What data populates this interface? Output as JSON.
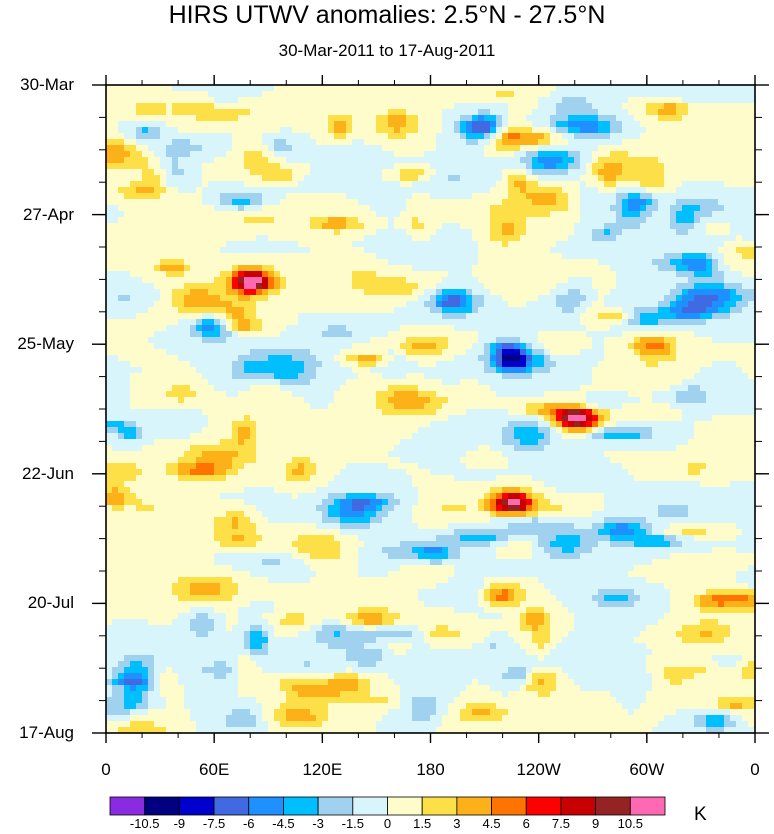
{
  "chart_data": {
    "type": "heatmap",
    "title": "HIRS UTWV anomalies: 2.5°N - 27.5°N",
    "subtitle": "30-Mar-2011 to 17-Aug-2011",
    "xlabel": "",
    "ylabel": "",
    "x_tick_labels": [
      "0",
      "60E",
      "120E",
      "180",
      "120W",
      "60W",
      "0"
    ],
    "x_range_deg_east": [
      0,
      360
    ],
    "y_tick_labels": [
      "30-Mar",
      "27-Apr",
      "25-May",
      "22-Jun",
      "20-Jul",
      "17-Aug"
    ],
    "time_range_days": [
      0,
      140
    ],
    "colorbar": {
      "levels": [
        "-10.5",
        "-9",
        "-7.5",
        "-6",
        "-4.5",
        "-3",
        "-1.5",
        "0",
        "1.5",
        "3",
        "4.5",
        "6",
        "7.5",
        "9",
        "10.5"
      ],
      "colors": [
        "#8a2be2",
        "#000080",
        "#0000cd",
        "#4169e1",
        "#1e90ff",
        "#00bfff",
        "#a0d2f0",
        "#d7f5fa",
        "#fffccc",
        "#fde047",
        "#fbb117",
        "#ff7400",
        "#ff0000",
        "#c80000",
        "#962323",
        "#ff69b4"
      ],
      "units": "K"
    }
  }
}
